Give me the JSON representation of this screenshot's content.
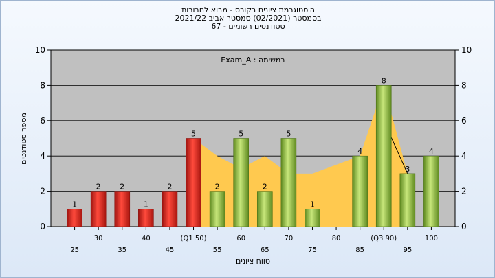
{
  "title_lines": [
    "היסטוגרמת ציונים בקורס - מבוא לחבורות",
    "בסמסטר  (02/2021)  סמסטר אביב 2021/22",
    "סטודנטים רשומים - 67"
  ],
  "chart_data": {
    "type": "bar",
    "annotation": "במשימה : Exam_A",
    "categories": [
      "25",
      "30",
      "35",
      "40",
      "45",
      "(Q1 50)",
      "55",
      "60",
      "65",
      "70",
      "75",
      "80",
      "85",
      "(Q3 90)",
      "95",
      "100"
    ],
    "values": [
      1,
      2,
      2,
      1,
      2,
      5,
      2,
      5,
      2,
      5,
      1,
      0,
      4,
      8,
      3,
      4
    ],
    "bar_colors": [
      "#e0342e",
      "#e0342e",
      "#e0342e",
      "#e0342e",
      "#e0342e",
      "#e0342e",
      "#8fbf3f",
      "#8fbf3f",
      "#8fbf3f",
      "#8fbf3f",
      "#8fbf3f",
      "#8fbf3f",
      "#8fbf3f",
      "#8fbf3f",
      "#8fbf3f",
      "#8fbf3f"
    ],
    "area": {
      "color": "#ffc94f",
      "x": [
        "(Q1 50)",
        "55",
        "60",
        "65",
        "70",
        "75",
        "80",
        "85",
        "(Q3 90)",
        "95"
      ],
      "y": [
        5,
        4,
        3.3,
        4,
        3,
        3,
        3.5,
        4,
        8,
        3
      ]
    },
    "line_segment": {
      "from": "(Q3 90)",
      "to": "95",
      "y": [
        6,
        3
      ]
    },
    "ylim": [
      0,
      10
    ],
    "yticks": [
      0,
      2,
      4,
      6,
      8,
      10
    ],
    "ylabel": "מספר סטודנטים",
    "xlabel": "טווח ציונים",
    "grid": true,
    "plot_bg": "#c0c0c0"
  }
}
